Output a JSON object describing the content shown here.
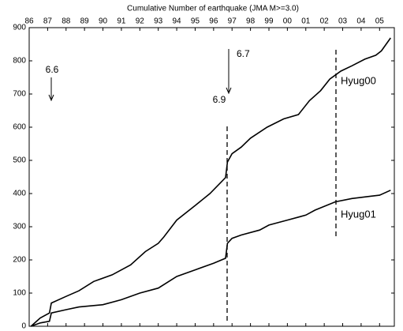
{
  "chart_data": {
    "type": "line",
    "title": "Cumulative Number of earthquake (JMA M>=3.0)",
    "xlim": [
      1986,
      2005.8
    ],
    "xticks": [
      {
        "value": 1986,
        "label": "86"
      },
      {
        "value": 1987,
        "label": "87"
      },
      {
        "value": 1988,
        "label": "88"
      },
      {
        "value": 1989,
        "label": "89"
      },
      {
        "value": 1990,
        "label": "90"
      },
      {
        "value": 1991,
        "label": "91"
      },
      {
        "value": 1992,
        "label": "92"
      },
      {
        "value": 1993,
        "label": "93"
      },
      {
        "value": 1994,
        "label": "94"
      },
      {
        "value": 1995,
        "label": "95"
      },
      {
        "value": 1996,
        "label": "96"
      },
      {
        "value": 1997,
        "label": "97"
      },
      {
        "value": 1998,
        "label": "98"
      },
      {
        "value": 1999,
        "label": "99"
      },
      {
        "value": 2000,
        "label": "00"
      },
      {
        "value": 2001,
        "label": "01"
      },
      {
        "value": 2002,
        "label": "02"
      },
      {
        "value": 2003,
        "label": "03"
      },
      {
        "value": 2004,
        "label": "04"
      },
      {
        "value": 2005,
        "label": "05"
      }
    ],
    "ylim": [
      0,
      900
    ],
    "yticks": [
      0,
      100,
      200,
      300,
      400,
      500,
      600,
      700,
      800,
      900
    ],
    "series": [
      {
        "name": "Hyug00",
        "color": "#000000",
        "x": [
          1986.1,
          1986.6,
          1987.1,
          1987.2,
          1988.0,
          1988.7,
          1989.5,
          1990.5,
          1991.5,
          1992.3,
          1993.0,
          1993.3,
          1994.0,
          1995.0,
          1995.8,
          1996.65,
          1996.75,
          1997.0,
          1997.5,
          1998.0,
          1998.9,
          1999.8,
          2000.6,
          2001.2,
          2001.8,
          2002.3,
          2002.9,
          2003.5,
          2004.2,
          2004.8,
          2005.1,
          2005.6
        ],
        "values": [
          0,
          25,
          40,
          70,
          90,
          107,
          135,
          155,
          185,
          225,
          250,
          269,
          320,
          364,
          400,
          448,
          495,
          520,
          540,
          567,
          600,
          625,
          638,
          680,
          710,
          745,
          769,
          785,
          805,
          817,
          830,
          869
        ]
      },
      {
        "name": "Hyug01",
        "color": "#000000",
        "x": [
          1986.1,
          1986.6,
          1987.1,
          1987.2,
          1988.0,
          1988.7,
          1990.0,
          1991.0,
          1992.0,
          1993.0,
          1994.0,
          1995.0,
          1996.0,
          1996.65,
          1996.75,
          1997.0,
          1997.5,
          1998.5,
          1999.0,
          2000.0,
          2001.0,
          2001.5,
          2002.6,
          2003.5,
          2004.5,
          2005.0,
          2005.6
        ],
        "values": [
          0,
          10,
          15,
          40,
          50,
          58,
          65,
          80,
          100,
          115,
          150,
          170,
          190,
          205,
          250,
          265,
          275,
          290,
          305,
          320,
          335,
          350,
          375,
          385,
          392,
          395,
          410
        ]
      }
    ],
    "annotations": [
      "6.6",
      "6.7",
      "6.9"
    ]
  }
}
